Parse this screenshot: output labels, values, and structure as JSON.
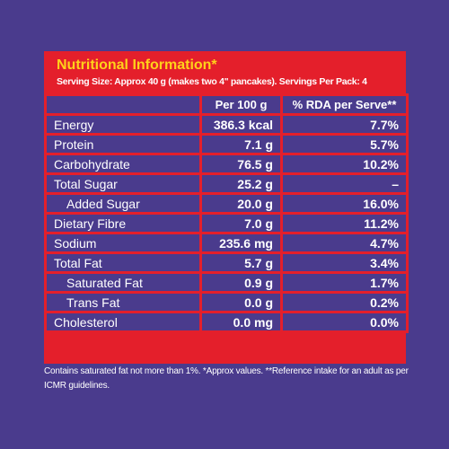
{
  "header": {
    "title": "Nutritional Information*",
    "serving": "Serving Size: Approx 40 g (makes two 4\" pancakes). Servings Per Pack: 4"
  },
  "table": {
    "columns": [
      "Per 100 g",
      "% RDA per Serve**"
    ],
    "rows": [
      {
        "label": "Energy",
        "per100": "386.3 kcal",
        "rda": "7.7%"
      },
      {
        "label": "Protein",
        "per100": "7.1 g",
        "rda": "5.7%"
      },
      {
        "label": "Carbohydrate",
        "per100": "76.5 g",
        "rda": "10.2%"
      },
      {
        "label": "Total Sugar",
        "per100": "25.2 g",
        "rda": "–"
      },
      {
        "label": "Added Sugar",
        "per100": "20.0 g",
        "rda": "16.0%",
        "indent": true
      },
      {
        "label": "Dietary Fibre",
        "per100": "7.0 g",
        "rda": "11.2%"
      },
      {
        "label": "Sodium",
        "per100": "235.6 mg",
        "rda": "4.7%"
      },
      {
        "label": "Total Fat",
        "per100": "5.7 g",
        "rda": "3.4%"
      },
      {
        "label": "Saturated Fat",
        "per100": "0.9 g",
        "rda": "1.7%",
        "indent": true
      },
      {
        "label": "Trans Fat",
        "per100": "0.0 g",
        "rda": "0.2%",
        "indent": true
      },
      {
        "label": "Cholesterol",
        "per100": "0.0 mg",
        "rda": "0.0%"
      }
    ]
  },
  "footnote": "Contains saturated fat not more than 1%. *Approx values. **Reference intake for an adult as per ICMR guidelines."
}
